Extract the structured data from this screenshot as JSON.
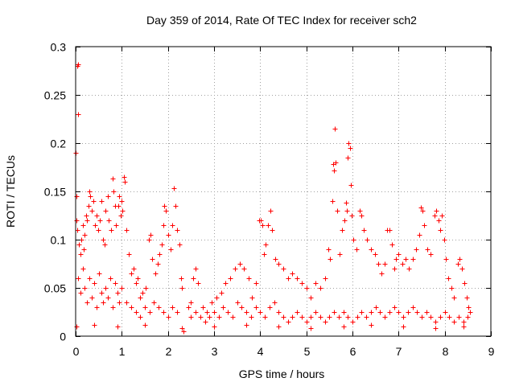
{
  "chart_data": {
    "type": "scatter",
    "title": "Day 359 of 2014, Rate Of TEC Index for receiver sch2",
    "xlabel": "GPS time / hours",
    "ylabel": "ROTI / TECUs",
    "xlim": [
      0,
      9
    ],
    "ylim": [
      0,
      0.3
    ],
    "x_ticks": [
      0,
      1,
      2,
      3,
      4,
      5,
      6,
      7,
      8,
      9
    ],
    "y_ticks": [
      0,
      0.05,
      0.1,
      0.15,
      0.2,
      0.25,
      0.3
    ],
    "x_tick_labels": [
      "0",
      "1",
      "2",
      "3",
      "4",
      "5",
      "6",
      "7",
      "8",
      "9"
    ],
    "y_tick_labels": [
      "0",
      "0.05",
      "0.1",
      "0.15",
      "0.2",
      "0.25",
      "0.3"
    ],
    "grid": true,
    "marker": "plus",
    "color": "#ff0000",
    "series": [
      {
        "name": "ROTI",
        "points": [
          [
            0.0,
            0.19
          ],
          [
            0.02,
            0.145
          ],
          [
            0.03,
            0.28
          ],
          [
            0.05,
            0.282
          ],
          [
            0.06,
            0.23
          ],
          [
            0.01,
            0.12
          ],
          [
            0.04,
            0.11
          ],
          [
            0.07,
            0.095
          ],
          [
            0.1,
            0.085
          ],
          [
            0.12,
            0.1
          ],
          [
            0.15,
            0.115
          ],
          [
            0.18,
            0.09
          ],
          [
            0.2,
            0.105
          ],
          [
            0.22,
            0.125
          ],
          [
            0.25,
            0.12
          ],
          [
            0.28,
            0.135
          ],
          [
            0.3,
            0.15
          ],
          [
            0.32,
            0.145
          ],
          [
            0.35,
            0.13
          ],
          [
            0.38,
            0.14
          ],
          [
            0.42,
            0.115
          ],
          [
            0.45,
            0.125
          ],
          [
            0.48,
            0.11
          ],
          [
            0.52,
            0.12
          ],
          [
            0.55,
            0.14
          ],
          [
            0.6,
            0.1
          ],
          [
            0.62,
            0.095
          ],
          [
            0.65,
            0.13
          ],
          [
            0.7,
            0.145
          ],
          [
            0.72,
            0.12
          ],
          [
            0.76,
            0.11
          ],
          [
            0.8,
            0.163
          ],
          [
            0.82,
            0.15
          ],
          [
            0.85,
            0.135
          ],
          [
            0.88,
            0.115
          ],
          [
            0.92,
            0.135
          ],
          [
            0.95,
            0.145
          ],
          [
            0.98,
            0.125
          ],
          [
            1.0,
            0.14
          ],
          [
            1.02,
            0.13
          ],
          [
            1.05,
            0.165
          ],
          [
            1.07,
            0.16
          ],
          [
            1.1,
            0.11
          ],
          [
            1.15,
            0.085
          ],
          [
            1.2,
            0.065
          ],
          [
            1.25,
            0.07
          ],
          [
            1.3,
            0.055
          ],
          [
            1.35,
            0.06
          ],
          [
            1.4,
            0.04
          ],
          [
            1.45,
            0.045
          ],
          [
            1.52,
            0.05
          ],
          [
            1.58,
            0.1
          ],
          [
            1.62,
            0.105
          ],
          [
            1.66,
            0.08
          ],
          [
            1.72,
            0.065
          ],
          [
            1.78,
            0.075
          ],
          [
            1.82,
            0.085
          ],
          [
            1.86,
            0.095
          ],
          [
            1.9,
            0.115
          ],
          [
            1.92,
            0.135
          ],
          [
            1.96,
            0.13
          ],
          [
            2.0,
            0.105
          ],
          [
            2.05,
            0.09
          ],
          [
            2.1,
            0.115
          ],
          [
            2.12,
            0.153
          ],
          [
            2.16,
            0.135
          ],
          [
            2.2,
            0.11
          ],
          [
            2.25,
            0.095
          ],
          [
            2.28,
            0.06
          ],
          [
            2.3,
            0.05
          ],
          [
            2.33,
            0.005
          ],
          [
            2.45,
            0.03
          ],
          [
            2.5,
            0.035
          ],
          [
            2.55,
            0.06
          ],
          [
            2.6,
            0.07
          ],
          [
            2.65,
            0.055
          ],
          [
            2.75,
            0.03
          ],
          [
            2.85,
            0.025
          ],
          [
            2.95,
            0.035
          ],
          [
            3.05,
            0.04
          ],
          [
            3.15,
            0.045
          ],
          [
            3.25,
            0.055
          ],
          [
            3.35,
            0.06
          ],
          [
            3.45,
            0.07
          ],
          [
            3.55,
            0.075
          ],
          [
            3.65,
            0.07
          ],
          [
            3.75,
            0.06
          ],
          [
            3.82,
            0.04
          ],
          [
            3.9,
            0.055
          ],
          [
            3.98,
            0.12
          ],
          [
            4.01,
            0.12
          ],
          [
            4.04,
            0.115
          ],
          [
            4.08,
            0.085
          ],
          [
            4.12,
            0.095
          ],
          [
            4.17,
            0.115
          ],
          [
            4.22,
            0.13
          ],
          [
            4.26,
            0.11
          ],
          [
            4.32,
            0.08
          ],
          [
            4.4,
            0.075
          ],
          [
            4.5,
            0.07
          ],
          [
            4.6,
            0.06
          ],
          [
            4.7,
            0.065
          ],
          [
            4.8,
            0.06
          ],
          [
            4.9,
            0.055
          ],
          [
            5.0,
            0.05
          ],
          [
            5.1,
            0.04
          ],
          [
            5.2,
            0.055
          ],
          [
            5.3,
            0.05
          ],
          [
            5.4,
            0.06
          ],
          [
            5.48,
            0.09
          ],
          [
            5.52,
            0.08
          ],
          [
            5.56,
            0.14
          ],
          [
            5.58,
            0.178
          ],
          [
            5.6,
            0.172
          ],
          [
            5.62,
            0.215
          ],
          [
            5.64,
            0.18
          ],
          [
            5.66,
            0.13
          ],
          [
            5.72,
            0.085
          ],
          [
            5.78,
            0.11
          ],
          [
            5.82,
            0.12
          ],
          [
            5.86,
            0.138
          ],
          [
            5.88,
            0.13
          ],
          [
            5.9,
            0.185
          ],
          [
            5.92,
            0.2
          ],
          [
            5.94,
            0.195
          ],
          [
            5.96,
            0.157
          ],
          [
            5.98,
            0.125
          ],
          [
            6.02,
            0.1
          ],
          [
            6.08,
            0.09
          ],
          [
            6.15,
            0.13
          ],
          [
            6.2,
            0.125
          ],
          [
            6.25,
            0.11
          ],
          [
            6.32,
            0.1
          ],
          [
            6.4,
            0.09
          ],
          [
            6.48,
            0.085
          ],
          [
            6.55,
            0.075
          ],
          [
            6.62,
            0.065
          ],
          [
            6.7,
            0.075
          ],
          [
            6.75,
            0.11
          ],
          [
            6.8,
            0.11
          ],
          [
            6.85,
            0.095
          ],
          [
            6.9,
            0.07
          ],
          [
            6.95,
            0.08
          ],
          [
            7.0,
            0.085
          ],
          [
            7.08,
            0.075
          ],
          [
            7.15,
            0.08
          ],
          [
            7.22,
            0.07
          ],
          [
            7.3,
            0.08
          ],
          [
            7.38,
            0.09
          ],
          [
            7.45,
            0.105
          ],
          [
            7.48,
            0.133
          ],
          [
            7.52,
            0.13
          ],
          [
            7.56,
            0.115
          ],
          [
            7.62,
            0.09
          ],
          [
            7.7,
            0.085
          ],
          [
            7.78,
            0.125
          ],
          [
            7.82,
            0.13
          ],
          [
            7.86,
            0.12
          ],
          [
            7.9,
            0.11
          ],
          [
            7.94,
            0.125
          ],
          [
            7.98,
            0.1
          ],
          [
            8.02,
            0.08
          ],
          [
            8.08,
            0.06
          ],
          [
            8.14,
            0.05
          ],
          [
            8.2,
            0.04
          ],
          [
            8.28,
            0.075
          ],
          [
            8.32,
            0.08
          ],
          [
            8.38,
            0.07
          ],
          [
            8.42,
            0.055
          ],
          [
            8.48,
            0.04
          ],
          [
            8.52,
            0.03
          ],
          [
            8.55,
            0.025
          ],
          [
            0.05,
            0.06
          ],
          [
            0.1,
            0.045
          ],
          [
            0.15,
            0.07
          ],
          [
            0.2,
            0.05
          ],
          [
            0.25,
            0.035
          ],
          [
            0.3,
            0.06
          ],
          [
            0.35,
            0.04
          ],
          [
            0.4,
            0.055
          ],
          [
            0.45,
            0.03
          ],
          [
            0.5,
            0.065
          ],
          [
            0.55,
            0.045
          ],
          [
            0.6,
            0.035
          ],
          [
            0.65,
            0.05
          ],
          [
            0.7,
            0.04
          ],
          [
            0.75,
            0.06
          ],
          [
            0.8,
            0.03
          ],
          [
            0.85,
            0.055
          ],
          [
            0.9,
            0.045
          ],
          [
            0.95,
            0.035
          ],
          [
            1.0,
            0.05
          ],
          [
            1.1,
            0.035
          ],
          [
            1.2,
            0.03
          ],
          [
            1.3,
            0.025
          ],
          [
            1.4,
            0.02
          ],
          [
            1.5,
            0.03
          ],
          [
            1.6,
            0.025
          ],
          [
            1.7,
            0.035
          ],
          [
            1.8,
            0.03
          ],
          [
            1.9,
            0.025
          ],
          [
            2.0,
            0.02
          ],
          [
            2.1,
            0.03
          ],
          [
            2.2,
            0.025
          ],
          [
            2.5,
            0.02
          ],
          [
            2.6,
            0.025
          ],
          [
            2.7,
            0.02
          ],
          [
            2.8,
            0.015
          ],
          [
            2.9,
            0.02
          ],
          [
            3.0,
            0.025
          ],
          [
            3.1,
            0.02
          ],
          [
            3.2,
            0.03
          ],
          [
            3.3,
            0.025
          ],
          [
            3.4,
            0.02
          ],
          [
            3.5,
            0.035
          ],
          [
            3.6,
            0.03
          ],
          [
            3.7,
            0.025
          ],
          [
            3.8,
            0.02
          ],
          [
            3.9,
            0.03
          ],
          [
            4.0,
            0.025
          ],
          [
            4.1,
            0.02
          ],
          [
            4.2,
            0.03
          ],
          [
            4.3,
            0.035
          ],
          [
            4.4,
            0.025
          ],
          [
            4.5,
            0.02
          ],
          [
            4.6,
            0.015
          ],
          [
            4.7,
            0.02
          ],
          [
            4.8,
            0.025
          ],
          [
            4.9,
            0.02
          ],
          [
            5.0,
            0.015
          ],
          [
            5.1,
            0.02
          ],
          [
            5.2,
            0.025
          ],
          [
            5.3,
            0.02
          ],
          [
            5.4,
            0.015
          ],
          [
            5.5,
            0.02
          ],
          [
            5.6,
            0.025
          ],
          [
            5.7,
            0.02
          ],
          [
            5.8,
            0.025
          ],
          [
            5.9,
            0.02
          ],
          [
            6.0,
            0.015
          ],
          [
            6.1,
            0.02
          ],
          [
            6.2,
            0.025
          ],
          [
            6.3,
            0.02
          ],
          [
            6.4,
            0.025
          ],
          [
            6.5,
            0.03
          ],
          [
            6.6,
            0.025
          ],
          [
            6.7,
            0.02
          ],
          [
            6.8,
            0.025
          ],
          [
            6.9,
            0.03
          ],
          [
            7.0,
            0.025
          ],
          [
            7.1,
            0.02
          ],
          [
            7.2,
            0.025
          ],
          [
            7.3,
            0.03
          ],
          [
            7.4,
            0.025
          ],
          [
            7.5,
            0.02
          ],
          [
            7.6,
            0.025
          ],
          [
            7.7,
            0.02
          ],
          [
            7.8,
            0.015
          ],
          [
            7.9,
            0.02
          ],
          [
            8.0,
            0.025
          ],
          [
            8.1,
            0.02
          ],
          [
            8.2,
            0.015
          ],
          [
            8.3,
            0.02
          ],
          [
            8.4,
            0.015
          ],
          [
            8.5,
            0.02
          ],
          [
            0.02,
            0.01
          ],
          [
            0.4,
            0.012
          ],
          [
            0.9,
            0.01
          ],
          [
            1.5,
            0.012
          ],
          [
            2.3,
            0.008
          ],
          [
            3.0,
            0.01
          ],
          [
            3.7,
            0.012
          ],
          [
            4.4,
            0.01
          ],
          [
            5.1,
            0.008
          ],
          [
            5.8,
            0.01
          ],
          [
            6.4,
            0.012
          ],
          [
            7.1,
            0.01
          ],
          [
            7.8,
            0.008
          ],
          [
            8.4,
            0.01
          ]
        ]
      }
    ]
  }
}
